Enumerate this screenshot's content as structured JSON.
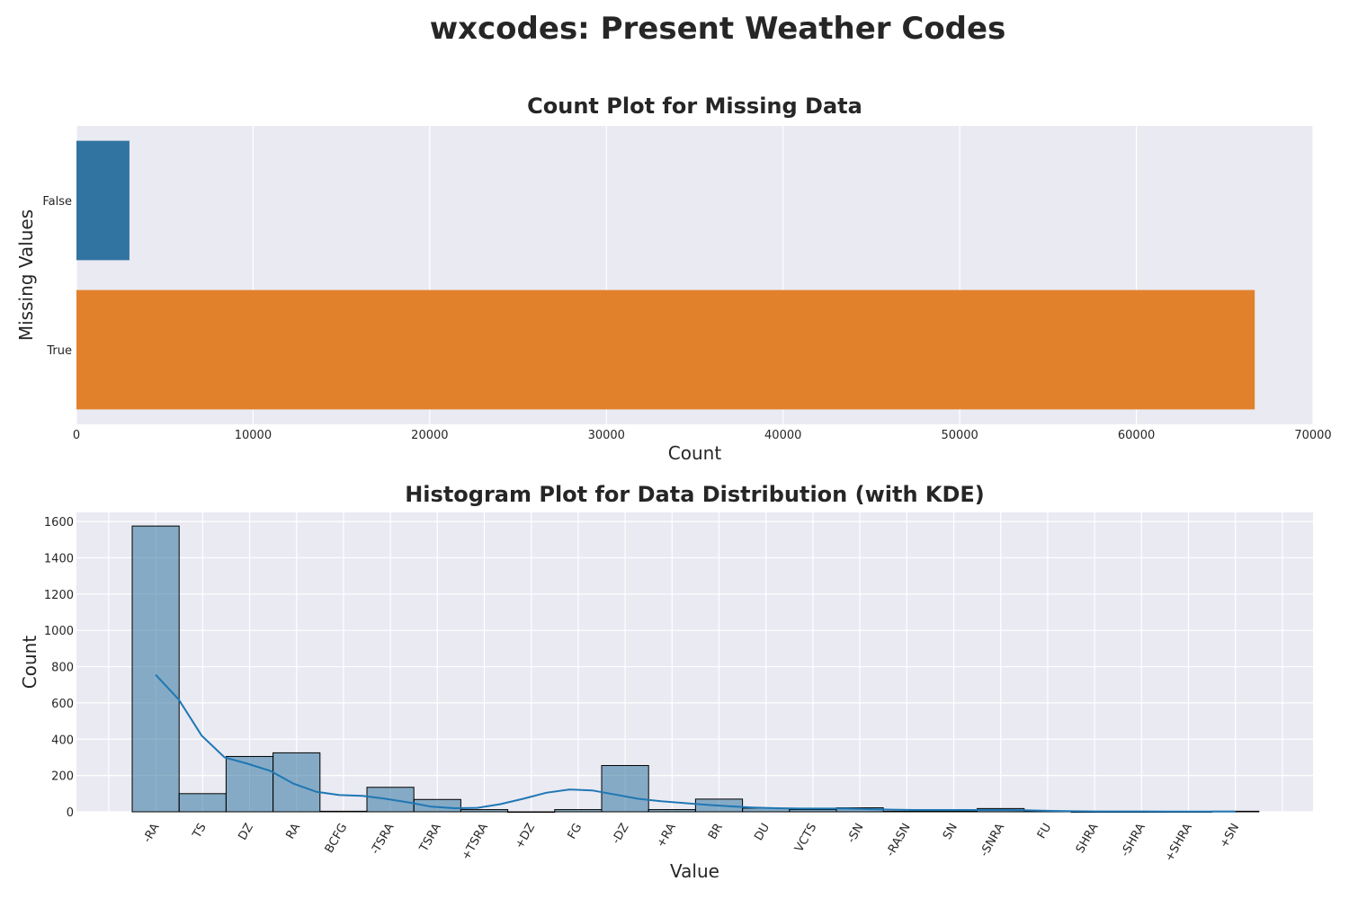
{
  "suptitle": "wxcodes: Present Weather Codes",
  "chart_data": [
    {
      "type": "bar",
      "orientation": "horizontal",
      "title": "Count Plot for Missing Data",
      "xlabel": "Count",
      "ylabel": "Missing Values",
      "categories": [
        "False",
        "True"
      ],
      "values": [
        3000,
        66700
      ],
      "colors": [
        "#3274a1",
        "#e1812c"
      ],
      "xlim": [
        0,
        70000
      ],
      "xticks": [
        0,
        10000,
        20000,
        30000,
        40000,
        50000,
        60000,
        70000
      ],
      "grid": true
    },
    {
      "type": "bar",
      "subtype": "histogram-with-kde",
      "title": "Histogram Plot for Data Distribution (with KDE)",
      "xlabel": "Value",
      "ylabel": "Count",
      "categories": [
        "-RA",
        "TS",
        "DZ",
        "RA",
        "BCFG",
        "-TSRA",
        "TSRA",
        "+TSRA",
        "+DZ",
        "FG",
        "-DZ",
        "+RA",
        "BR",
        "DU",
        "VCTS",
        "-SN",
        "-RASN",
        "SN",
        "-SNRA",
        "FU",
        "SHRA",
        "-SHRA",
        "+SHRA",
        "+SN"
      ],
      "values": [
        1575,
        100,
        305,
        325,
        3,
        135,
        68,
        12,
        0,
        12,
        255,
        12,
        70,
        20,
        12,
        22,
        3,
        3,
        18,
        3,
        0,
        0,
        0,
        3
      ],
      "kde": [
        755,
        620,
        420,
        300,
        265,
        225,
        155,
        110,
        92,
        88,
        72,
        52,
        28,
        20,
        22,
        42,
        72,
        105,
        123,
        118,
        95,
        72,
        58,
        48,
        38,
        30,
        24,
        20,
        18,
        18,
        18,
        15,
        12,
        10,
        10,
        10,
        10,
        10,
        8,
        5,
        3,
        2,
        2,
        2,
        1,
        1,
        1,
        1
      ],
      "color": "#3274a1",
      "ylim": [
        0,
        1650
      ],
      "yticks": [
        0,
        200,
        400,
        600,
        800,
        1000,
        1200,
        1400,
        1600
      ],
      "grid": true
    }
  ]
}
